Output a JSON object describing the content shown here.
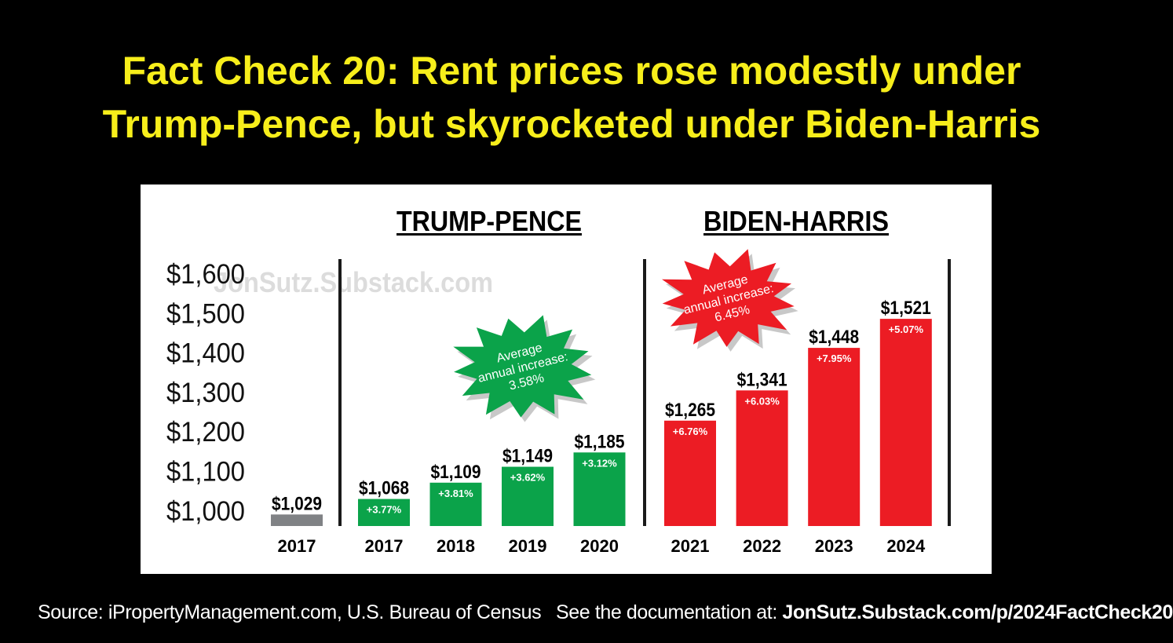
{
  "header": {
    "title_line1": "Fact Check 20: Rent prices rose modestly under",
    "title_line2": "Trump-Pence, but skyrocketed under Biden-Harris"
  },
  "footer": {
    "source": "Source: iPropertyManagement.com, U.S. Bureau of Census",
    "doc_prefix": "See the documentation at: ",
    "doc_link": "JonSutz.Substack.com/p/2024FactCheck20"
  },
  "colors": {
    "background": "#000000",
    "title": "#f7ee1b",
    "baseline_bar": "#808285",
    "trump_bars": "#0ba34a",
    "biden_bars": "#ec1c24"
  },
  "chart_data": {
    "type": "bar",
    "title": "",
    "xlabel": "",
    "ylabel": "",
    "ylim": [
      1000,
      1600
    ],
    "y_ticks": [
      "$1,600",
      "$1,500",
      "$1,400",
      "$1,300",
      "$1,200",
      "$1,100",
      "$1,000"
    ],
    "y_tick_values": [
      1600,
      1500,
      1400,
      1300,
      1200,
      1100,
      1000
    ],
    "grid": false,
    "watermark": "JonSutz.Substack.com",
    "groups": [
      {
        "name": "",
        "categories": [
          "2017"
        ],
        "values": [
          1029
        ],
        "value_labels": [
          "$1,029"
        ],
        "change_labels": [
          ""
        ]
      },
      {
        "name": "TRUMP-PENCE",
        "categories": [
          "2017",
          "2018",
          "2019",
          "2020"
        ],
        "values": [
          1068,
          1109,
          1149,
          1185
        ],
        "value_labels": [
          "$1,068",
          "$1,109",
          "$1,149",
          "$1,185"
        ],
        "change_labels": [
          "+3.77%",
          "+3.81%",
          "+3.62%",
          "+3.12%"
        ]
      },
      {
        "name": "BIDEN-HARRIS",
        "categories": [
          "2021",
          "2022",
          "2023",
          "2024"
        ],
        "values": [
          1265,
          1341,
          1448,
          1521
        ],
        "value_labels": [
          "$1,265",
          "$1,341",
          "$1,448",
          "$1,521"
        ],
        "change_labels": [
          "+6.76%",
          "+6.03%",
          "+7.95%",
          "+5.07%"
        ]
      }
    ],
    "annotations": [
      {
        "group": "TRUMP-PENCE",
        "lines": [
          "Average",
          "annual increase:",
          "3.58%"
        ]
      },
      {
        "group": "BIDEN-HARRIS",
        "lines": [
          "Average",
          "annual increase:",
          "6.45%"
        ]
      }
    ]
  }
}
